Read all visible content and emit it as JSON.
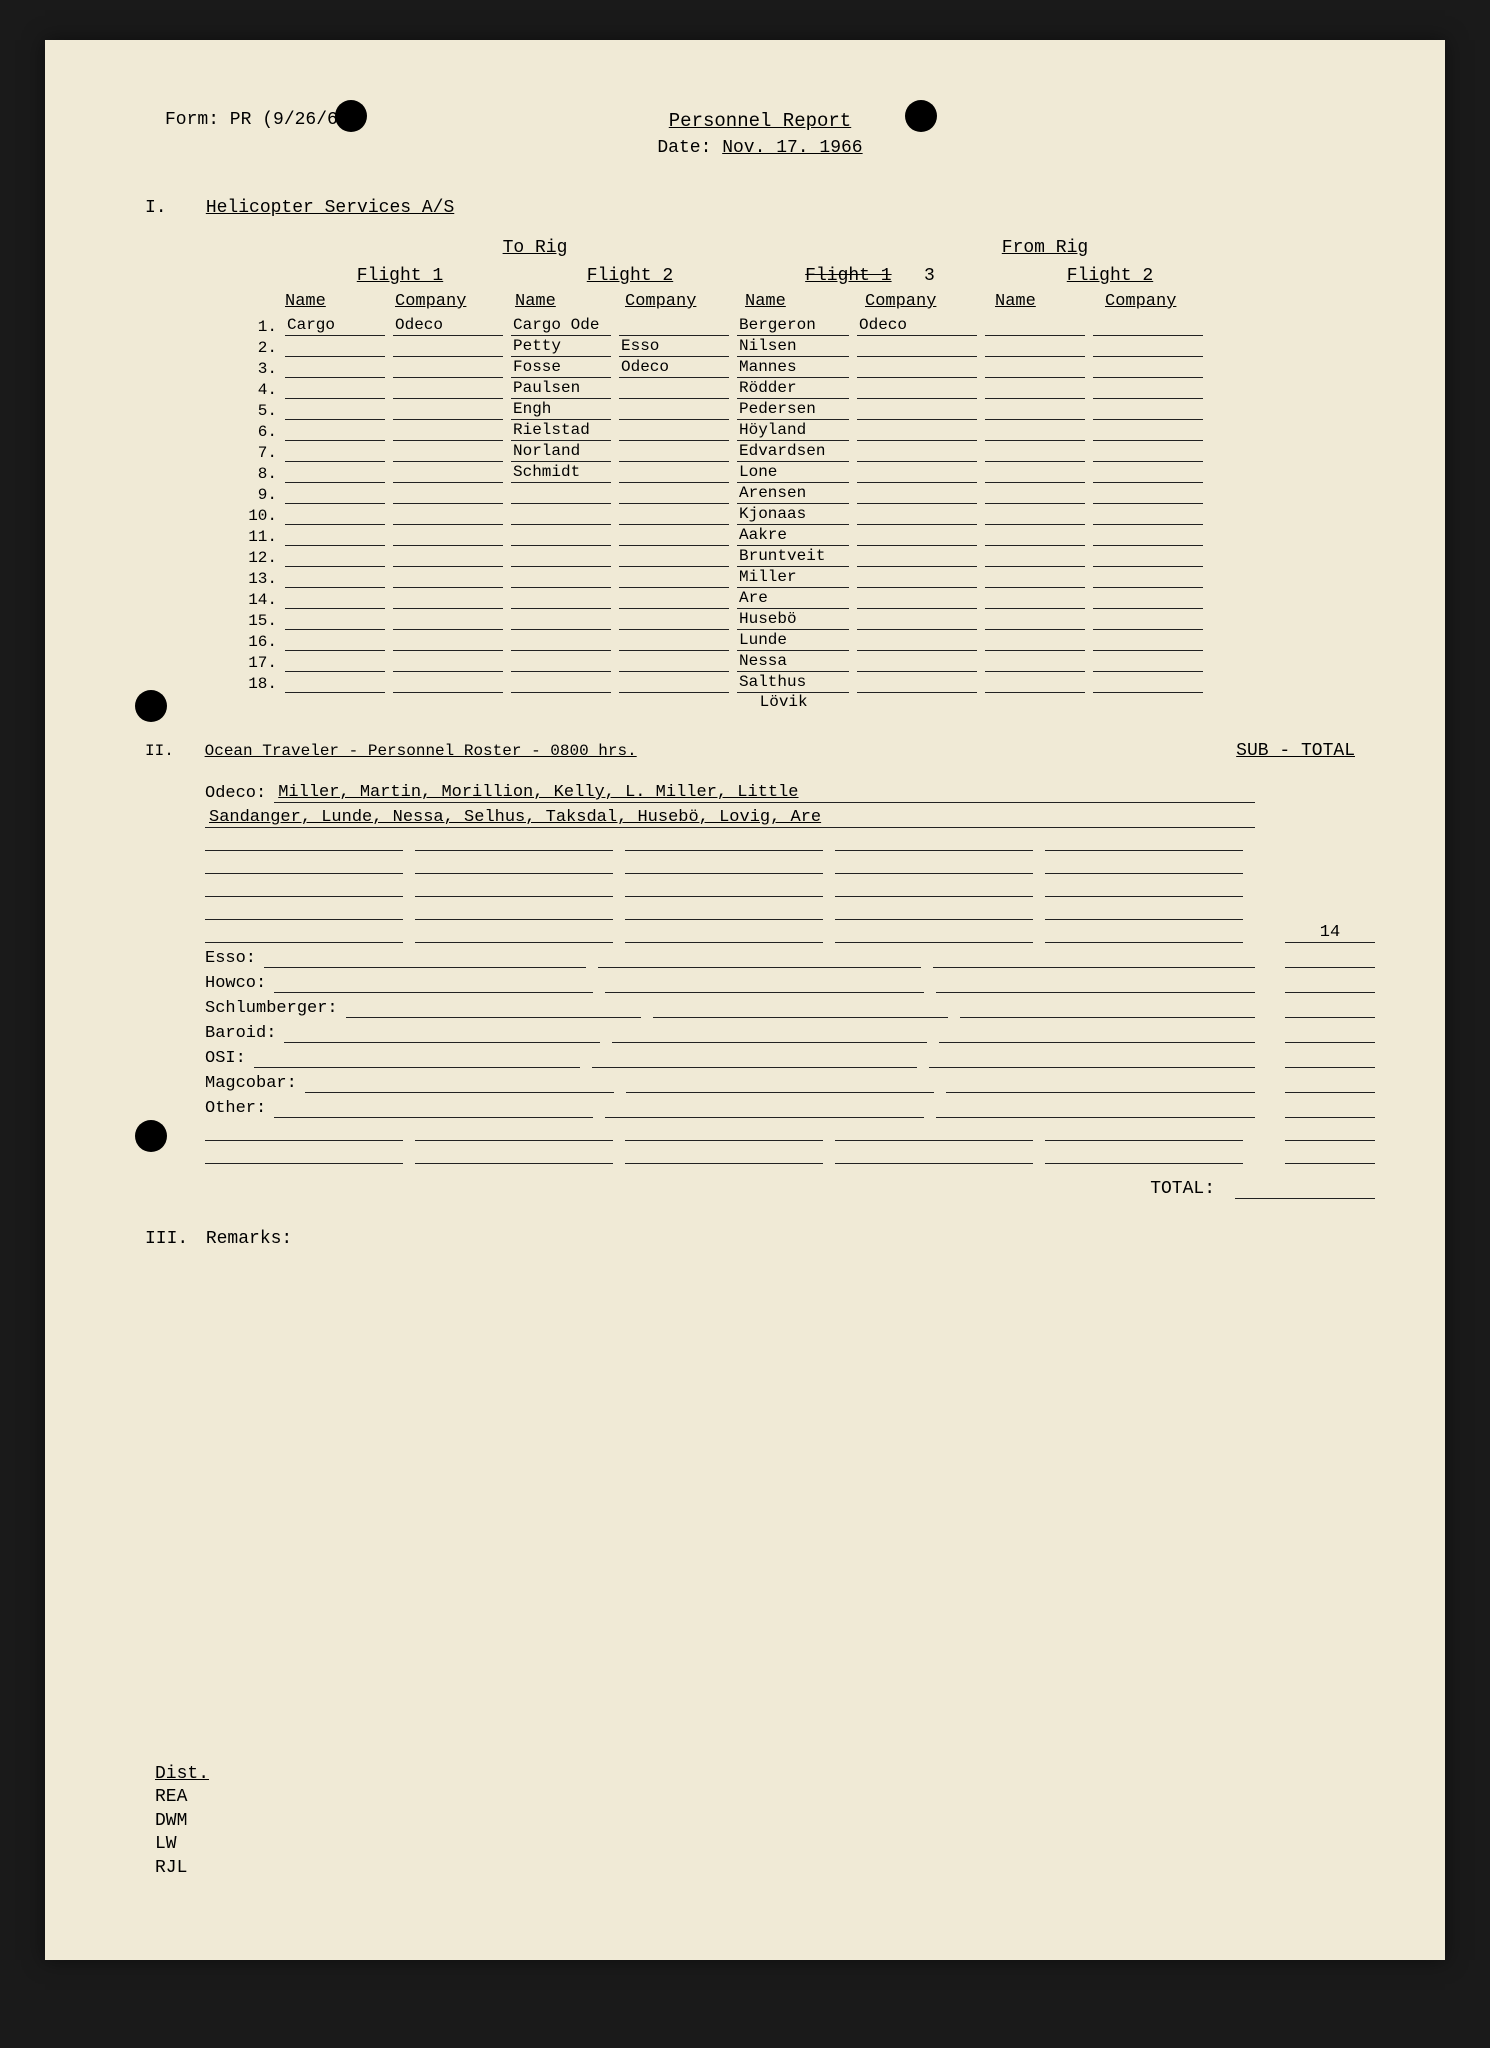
{
  "form_id": "Form: PR (9/26/66)",
  "title": "Personnel Report",
  "date_label": "Date:",
  "date_value": "Nov. 17. 1966",
  "section1": {
    "roman": "I.",
    "title": "Helicopter Services A/S",
    "to_rig": "To Rig",
    "from_rig": "From Rig",
    "flight1": "Flight 1",
    "flight2": "Flight 2",
    "flight3_strike": "Flight 1",
    "flight3_num": "3",
    "name_h": "Name",
    "company_h": "Company",
    "rows": [
      {
        "n": "1.",
        "f1n": "Cargo",
        "f1c": "Odeco",
        "f2n": "Cargo Ode",
        "f2c": "",
        "f3n": "Bergeron",
        "f3c": "Odeco",
        "f4n": "",
        "f4c": ""
      },
      {
        "n": "2.",
        "f1n": "",
        "f1c": "",
        "f2n": "Petty",
        "f2c": "Esso",
        "f3n": "Nilsen",
        "f3c": "",
        "f4n": "",
        "f4c": ""
      },
      {
        "n": "3.",
        "f1n": "",
        "f1c": "",
        "f2n": "Fosse",
        "f2c": "Odeco",
        "f3n": "Mannes",
        "f3c": "",
        "f4n": "",
        "f4c": ""
      },
      {
        "n": "4.",
        "f1n": "",
        "f1c": "",
        "f2n": "Paulsen",
        "f2c": "",
        "f3n": "Rödder",
        "f3c": "",
        "f4n": "",
        "f4c": ""
      },
      {
        "n": "5.",
        "f1n": "",
        "f1c": "",
        "f2n": "Engh",
        "f2c": "",
        "f3n": "Pedersen",
        "f3c": "",
        "f4n": "",
        "f4c": ""
      },
      {
        "n": "6.",
        "f1n": "",
        "f1c": "",
        "f2n": "Rielstad",
        "f2c": "",
        "f3n": "Höyland",
        "f3c": "",
        "f4n": "",
        "f4c": ""
      },
      {
        "n": "7.",
        "f1n": "",
        "f1c": "",
        "f2n": "Norland",
        "f2c": "",
        "f3n": "Edvardsen",
        "f3c": "",
        "f4n": "",
        "f4c": ""
      },
      {
        "n": "8.",
        "f1n": "",
        "f1c": "",
        "f2n": "Schmidt",
        "f2c": "",
        "f3n": "Lone",
        "f3c": "",
        "f4n": "",
        "f4c": ""
      },
      {
        "n": "9.",
        "f1n": "",
        "f1c": "",
        "f2n": "",
        "f2c": "",
        "f3n": "Arensen",
        "f3c": "",
        "f4n": "",
        "f4c": ""
      },
      {
        "n": "10.",
        "f1n": "",
        "f1c": "",
        "f2n": "",
        "f2c": "",
        "f3n": "Kjonaas",
        "f3c": "",
        "f4n": "",
        "f4c": ""
      },
      {
        "n": "11.",
        "f1n": "",
        "f1c": "",
        "f2n": "",
        "f2c": "",
        "f3n": "Aakre",
        "f3c": "",
        "f4n": "",
        "f4c": ""
      },
      {
        "n": "12.",
        "f1n": "",
        "f1c": "",
        "f2n": "",
        "f2c": "",
        "f3n": "Bruntveit",
        "f3c": "",
        "f4n": "",
        "f4c": ""
      },
      {
        "n": "13.",
        "f1n": "",
        "f1c": "",
        "f2n": "",
        "f2c": "",
        "f3n": "Miller",
        "f3c": "",
        "f4n": "",
        "f4c": ""
      },
      {
        "n": "14.",
        "f1n": "",
        "f1c": "",
        "f2n": "",
        "f2c": "",
        "f3n": "Are",
        "f3c": "",
        "f4n": "",
        "f4c": ""
      },
      {
        "n": "15.",
        "f1n": "",
        "f1c": "",
        "f2n": "",
        "f2c": "",
        "f3n": "Husebö",
        "f3c": "",
        "f4n": "",
        "f4c": ""
      },
      {
        "n": "16.",
        "f1n": "",
        "f1c": "",
        "f2n": "",
        "f2c": "",
        "f3n": "Lunde",
        "f3c": "",
        "f4n": "",
        "f4c": ""
      },
      {
        "n": "17.",
        "f1n": "",
        "f1c": "",
        "f2n": "",
        "f2c": "",
        "f3n": "Nessa",
        "f3c": "",
        "f4n": "",
        "f4c": ""
      },
      {
        "n": "18.",
        "f1n": "",
        "f1c": "",
        "f2n": "",
        "f2c": "",
        "f3n": "Salthus",
        "f3c": "",
        "f4n": "",
        "f4c": ""
      }
    ],
    "extra_name": "Lövik"
  },
  "section2": {
    "roman": "II.",
    "title": "Ocean Traveler - Personnel Roster - 0800 hrs.",
    "subtotal": "SUB - TOTAL",
    "odeco_label": "Odeco:",
    "odeco_line1": "Miller, Martin, Morillion, Kelly, L. Miller, Little",
    "odeco_line2": "Sandanger, Lunde, Nessa, Selhus, Taksdal, Husebö, Lovig, Are",
    "odeco_subtotal": "14",
    "companies": [
      {
        "label": "Esso:",
        "sub": ""
      },
      {
        "label": "Howco:",
        "sub": ""
      },
      {
        "label": "Schlumberger:",
        "sub": ""
      },
      {
        "label": "Baroid:",
        "sub": ""
      },
      {
        "label": "OSI:",
        "sub": ""
      },
      {
        "label": "Magcobar:",
        "sub": ""
      },
      {
        "label": "Other:",
        "sub": ""
      }
    ],
    "total_label": "TOTAL:"
  },
  "section3": {
    "roman": "III.",
    "title": "Remarks:"
  },
  "dist": {
    "title": "Dist.",
    "items": [
      "REA",
      "DWM",
      "LW",
      "RJL"
    ]
  }
}
